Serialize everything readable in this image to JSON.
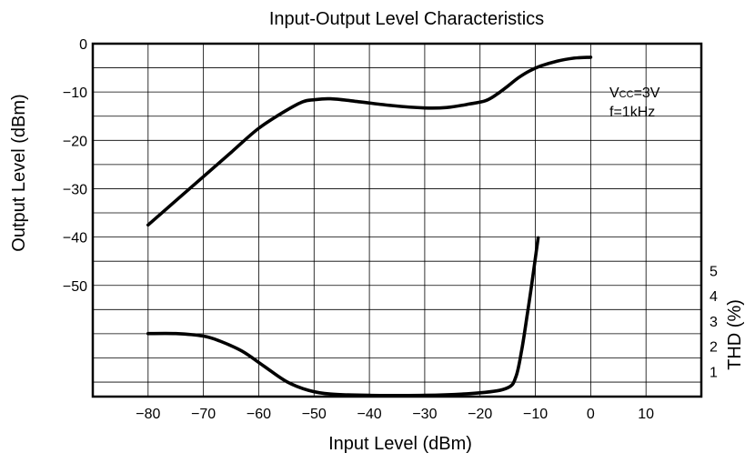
{
  "chart_data": {
    "type": "line",
    "title": "Input-Output Level Characteristics",
    "xlabel": "Input Level (dBm)",
    "ylabel": "Output Level (dBm)",
    "y2label": "THD (%)",
    "xlim": [
      -90,
      20
    ],
    "ylim": [
      -73,
      0
    ],
    "y2lim": [
      0,
      14
    ],
    "grid": true,
    "x_ticks": [
      -80,
      -70,
      -60,
      -50,
      -40,
      -30,
      -20,
      -10,
      0,
      10
    ],
    "x_tick_labels": [
      "−80",
      "−70",
      "−60",
      "−50",
      "−40",
      "−30",
      "−20",
      "−10",
      "0",
      "10"
    ],
    "y_ticks": [
      0,
      -10,
      -20,
      -30,
      -40,
      -50
    ],
    "y_tick_labels": [
      "0",
      "−10",
      "−20",
      "−30",
      "−40",
      "−50"
    ],
    "y2_ticks": [
      1,
      2,
      3,
      4,
      5
    ],
    "y2_tick_labels": [
      "1",
      "2",
      "3",
      "4",
      "5"
    ],
    "annotations": {
      "vcc_prefix": "V",
      "vcc_sub": "CC",
      "vcc_value": "=3V",
      "freq": "f=1kHz"
    },
    "series": [
      {
        "axis": "left",
        "x": [
          -80,
          -75,
          -70,
          -65,
          -60,
          -55,
          -52,
          -50,
          -47,
          -42,
          -36,
          -30,
          -26,
          -22,
          -19,
          -17,
          -15,
          -13,
          -11,
          -9,
          -6,
          -3,
          0
        ],
        "values": [
          -37.5,
          -32.5,
          -27.5,
          -22.5,
          -17.5,
          -13.8,
          -12.0,
          -11.6,
          -11.4,
          -12.0,
          -12.8,
          -13.3,
          -13.2,
          -12.5,
          -11.8,
          -10.5,
          -8.8,
          -7.0,
          -5.6,
          -4.6,
          -3.6,
          -3.0,
          -2.8
        ]
      },
      {
        "axis": "right",
        "x": [
          -80,
          -75,
          -70,
          -67,
          -63,
          -59,
          -55,
          -51,
          -47,
          -40,
          -30,
          -20,
          -15,
          -13.5,
          -12.5,
          -11.5,
          -10.5,
          -9.5
        ],
        "values": [
          2.5,
          2.5,
          2.4,
          2.2,
          1.8,
          1.2,
          0.6,
          0.25,
          0.1,
          0.05,
          0.05,
          0.15,
          0.35,
          0.8,
          1.8,
          3.2,
          4.7,
          6.3
        ]
      }
    ]
  }
}
